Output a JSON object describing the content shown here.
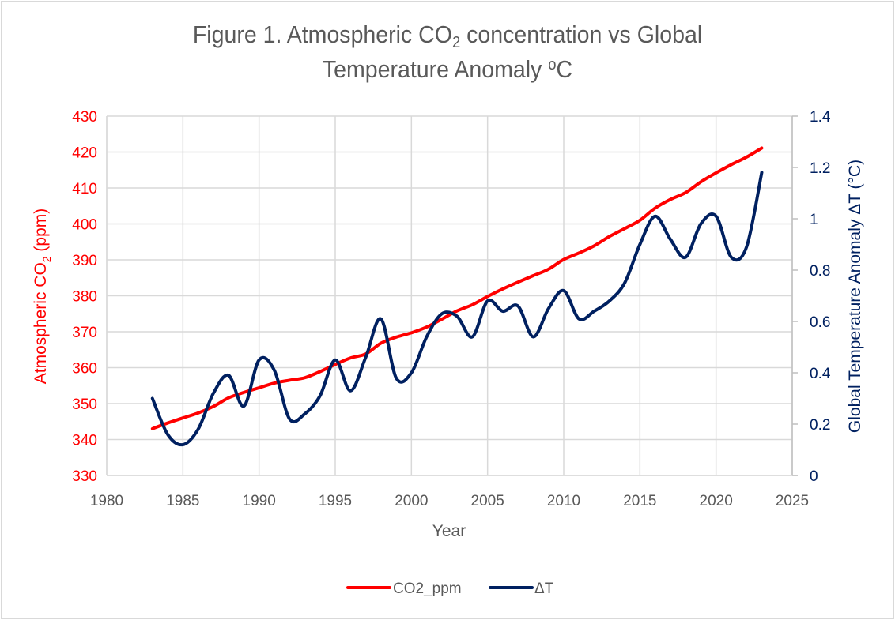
{
  "chart_data": {
    "type": "line",
    "title": {
      "prefix": "Figure 1. Atmospheric CO",
      "sub": "2",
      "middle": " concentration vs Global",
      "line2": "Temperature Anomaly ",
      "sup": "o",
      "suffix": "C"
    },
    "xlabel": "Year",
    "ylabel_left": {
      "prefix": "Atmospheric CO",
      "sub": "2",
      "suffix": " (ppm)"
    },
    "ylabel_right": "Global Temperature Anomaly ΔT (°C)",
    "xlim": [
      1980,
      2025
    ],
    "ylim_left": [
      330,
      430
    ],
    "ylim_right": [
      0,
      1.4
    ],
    "x_ticks": [
      "1980",
      "1985",
      "1990",
      "1995",
      "2000",
      "2005",
      "2010",
      "2015",
      "2020",
      "2025"
    ],
    "y_left_ticks": [
      "330",
      "340",
      "350",
      "360",
      "370",
      "380",
      "390",
      "400",
      "410",
      "420",
      "430"
    ],
    "y_right_ticks": [
      "0",
      "0.2",
      "0.4",
      "0.6",
      "0.8",
      "1",
      "1.2",
      "1.4"
    ],
    "grid": true,
    "legend_position": "bottom",
    "x": [
      1983,
      1984,
      1985,
      1986,
      1987,
      1988,
      1989,
      1990,
      1991,
      1992,
      1993,
      1994,
      1995,
      1996,
      1997,
      1998,
      1999,
      2000,
      2001,
      2002,
      2003,
      2004,
      2005,
      2006,
      2007,
      2008,
      2009,
      2010,
      2011,
      2012,
      2013,
      2014,
      2015,
      2016,
      2017,
      2018,
      2019,
      2020,
      2021,
      2022,
      2023
    ],
    "series": [
      {
        "name": "CO2_ppm",
        "axis": "left",
        "color": "#ff0000",
        "values": [
          343.0,
          344.6,
          346.0,
          347.4,
          349.2,
          351.6,
          353.1,
          354.4,
          355.7,
          356.5,
          357.2,
          358.9,
          360.9,
          362.7,
          363.8,
          366.8,
          368.5,
          369.7,
          371.3,
          373.5,
          375.8,
          377.5,
          379.8,
          381.9,
          383.8,
          385.6,
          387.4,
          390.1,
          391.9,
          393.9,
          396.5,
          398.7,
          401.0,
          404.4,
          406.8,
          408.7,
          411.7,
          414.2,
          416.5,
          418.6,
          421.1
        ]
      },
      {
        "name": "ΔT",
        "axis": "right",
        "color": "#002060",
        "values": [
          0.3,
          0.16,
          0.12,
          0.18,
          0.32,
          0.39,
          0.27,
          0.45,
          0.41,
          0.22,
          0.24,
          0.31,
          0.45,
          0.33,
          0.46,
          0.61,
          0.38,
          0.4,
          0.54,
          0.63,
          0.62,
          0.54,
          0.68,
          0.64,
          0.66,
          0.54,
          0.65,
          0.72,
          0.61,
          0.64,
          0.68,
          0.75,
          0.9,
          1.01,
          0.92,
          0.85,
          0.98,
          1.01,
          0.85,
          0.89,
          1.18
        ]
      }
    ]
  }
}
